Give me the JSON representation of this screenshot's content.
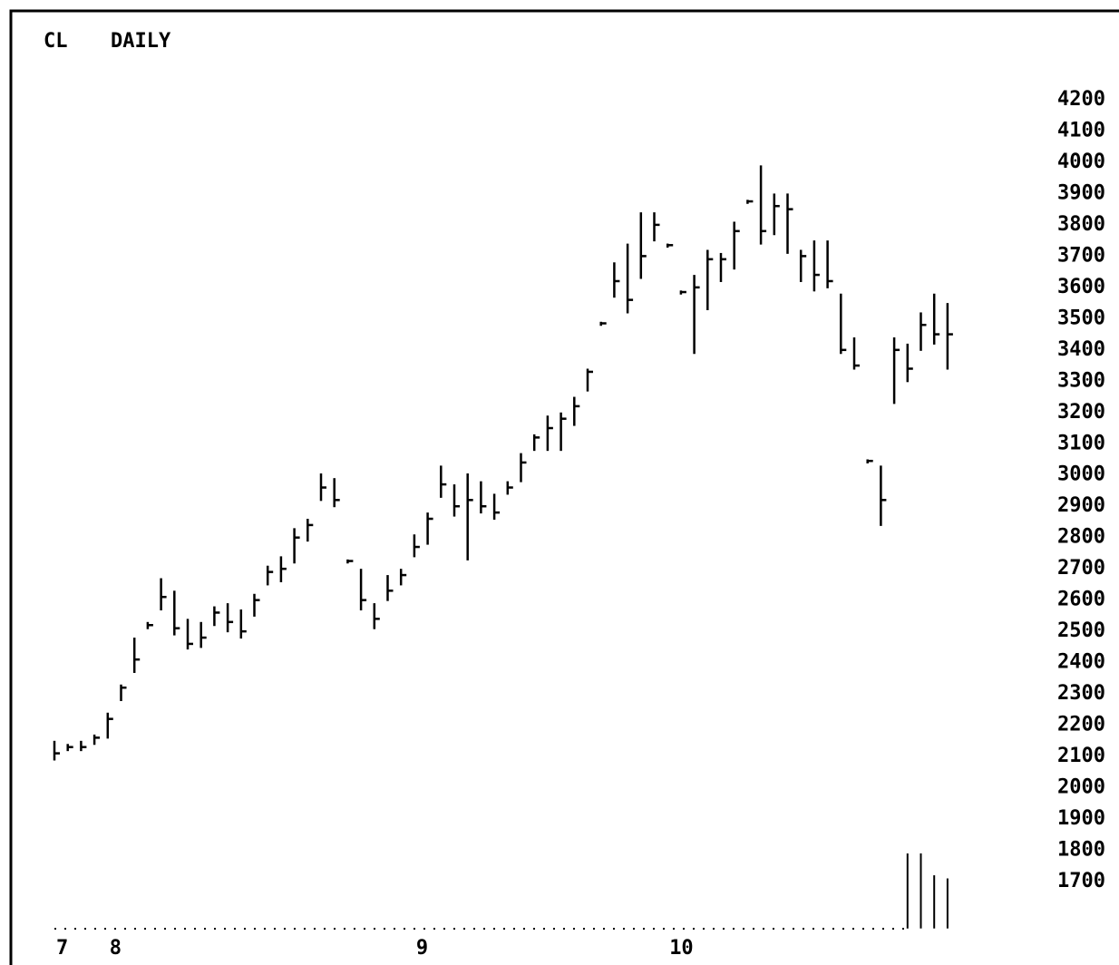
{
  "chart_data": {
    "type": "ohlc",
    "title": "CL",
    "subtitle": "DAILY",
    "categories": [
      "7",
      null,
      null,
      null,
      "8",
      null,
      null,
      null,
      null,
      null,
      null,
      null,
      null,
      null,
      null,
      null,
      null,
      null,
      null,
      null,
      null,
      null,
      null,
      null,
      null,
      null,
      null,
      "9",
      null,
      null,
      null,
      null,
      null,
      null,
      null,
      null,
      null,
      null,
      null,
      null,
      null,
      null,
      null,
      null,
      null,
      null,
      "10",
      null,
      null,
      null,
      null,
      null,
      null,
      null,
      null,
      null,
      null,
      null,
      null,
      null,
      null,
      null,
      null,
      null,
      null,
      null,
      null,
      null
    ],
    "high": [
      2150,
      2140,
      2150,
      2170,
      2240,
      2330,
      2480,
      2530,
      2670,
      2630,
      2540,
      2530,
      2580,
      2590,
      2570,
      2620,
      2710,
      2740,
      2830,
      2860,
      3005,
      2990,
      2730,
      2700,
      2590,
      2680,
      2700,
      2810,
      2880,
      3030,
      2970,
      3005,
      2980,
      2940,
      2980,
      3070,
      3130,
      3190,
      3200,
      3250,
      3340,
      3490,
      3680,
      3740,
      3840,
      3840,
      3740,
      3590,
      3640,
      3720,
      3710,
      3810,
      3880,
      3990,
      3900,
      3900,
      3720,
      3750,
      3750,
      3580,
      3440,
      3050,
      3030,
      3440,
      3420,
      3520,
      3580,
      3550
    ],
    "low": [
      2090,
      2120,
      2120,
      2140,
      2160,
      2280,
      2370,
      2510,
      2570,
      2490,
      2445,
      2450,
      2520,
      2500,
      2480,
      2550,
      2650,
      2660,
      2720,
      2790,
      2920,
      2900,
      2720,
      2570,
      2510,
      2600,
      2650,
      2740,
      2780,
      2930,
      2870,
      2730,
      2880,
      2860,
      2940,
      2980,
      3080,
      3080,
      3080,
      3160,
      3270,
      3480,
      3570,
      3520,
      3630,
      3750,
      3730,
      3580,
      3390,
      3530,
      3620,
      3660,
      3870,
      3740,
      3770,
      3710,
      3620,
      3590,
      3600,
      3390,
      3340,
      3040,
      2840,
      3230,
      3300,
      3400,
      3420,
      3340
    ],
    "close": [
      2110,
      2130,
      2130,
      2160,
      2220,
      2320,
      2410,
      2520,
      2610,
      2510,
      2460,
      2480,
      2560,
      2530,
      2500,
      2600,
      2690,
      2700,
      2800,
      2840,
      2960,
      2920,
      2725,
      2600,
      2540,
      2630,
      2680,
      2770,
      2860,
      2970,
      2900,
      2920,
      2900,
      2880,
      2960,
      3040,
      3120,
      3150,
      3180,
      3220,
      3330,
      3485,
      3620,
      3560,
      3700,
      3800,
      3735,
      3585,
      3600,
      3690,
      3690,
      3780,
      3875,
      3780,
      3860,
      3850,
      3700,
      3640,
      3620,
      3400,
      3350,
      3045,
      2920,
      3400,
      3340,
      3480,
      3450,
      3450
    ],
    "volume": [
      null,
      null,
      null,
      null,
      null,
      null,
      null,
      null,
      null,
      null,
      null,
      null,
      null,
      null,
      null,
      null,
      null,
      null,
      null,
      null,
      null,
      null,
      null,
      null,
      null,
      null,
      null,
      null,
      null,
      null,
      null,
      null,
      null,
      null,
      null,
      null,
      null,
      null,
      null,
      null,
      null,
      null,
      null,
      null,
      null,
      null,
      null,
      null,
      null,
      null,
      null,
      null,
      null,
      null,
      null,
      null,
      null,
      null,
      null,
      null,
      null,
      null,
      null,
      null,
      1790,
      1790,
      1720,
      1710
    ],
    "color": "#000000",
    "ylim": [
      1550,
      4300
    ],
    "yticks": [
      1700,
      1800,
      1900,
      2000,
      2100,
      2200,
      2300,
      2400,
      2500,
      2600,
      2700,
      2800,
      2900,
      3000,
      3100,
      3200,
      3300,
      3400,
      3500,
      3600,
      3700,
      3800,
      3900,
      4000,
      4100,
      4200
    ]
  }
}
